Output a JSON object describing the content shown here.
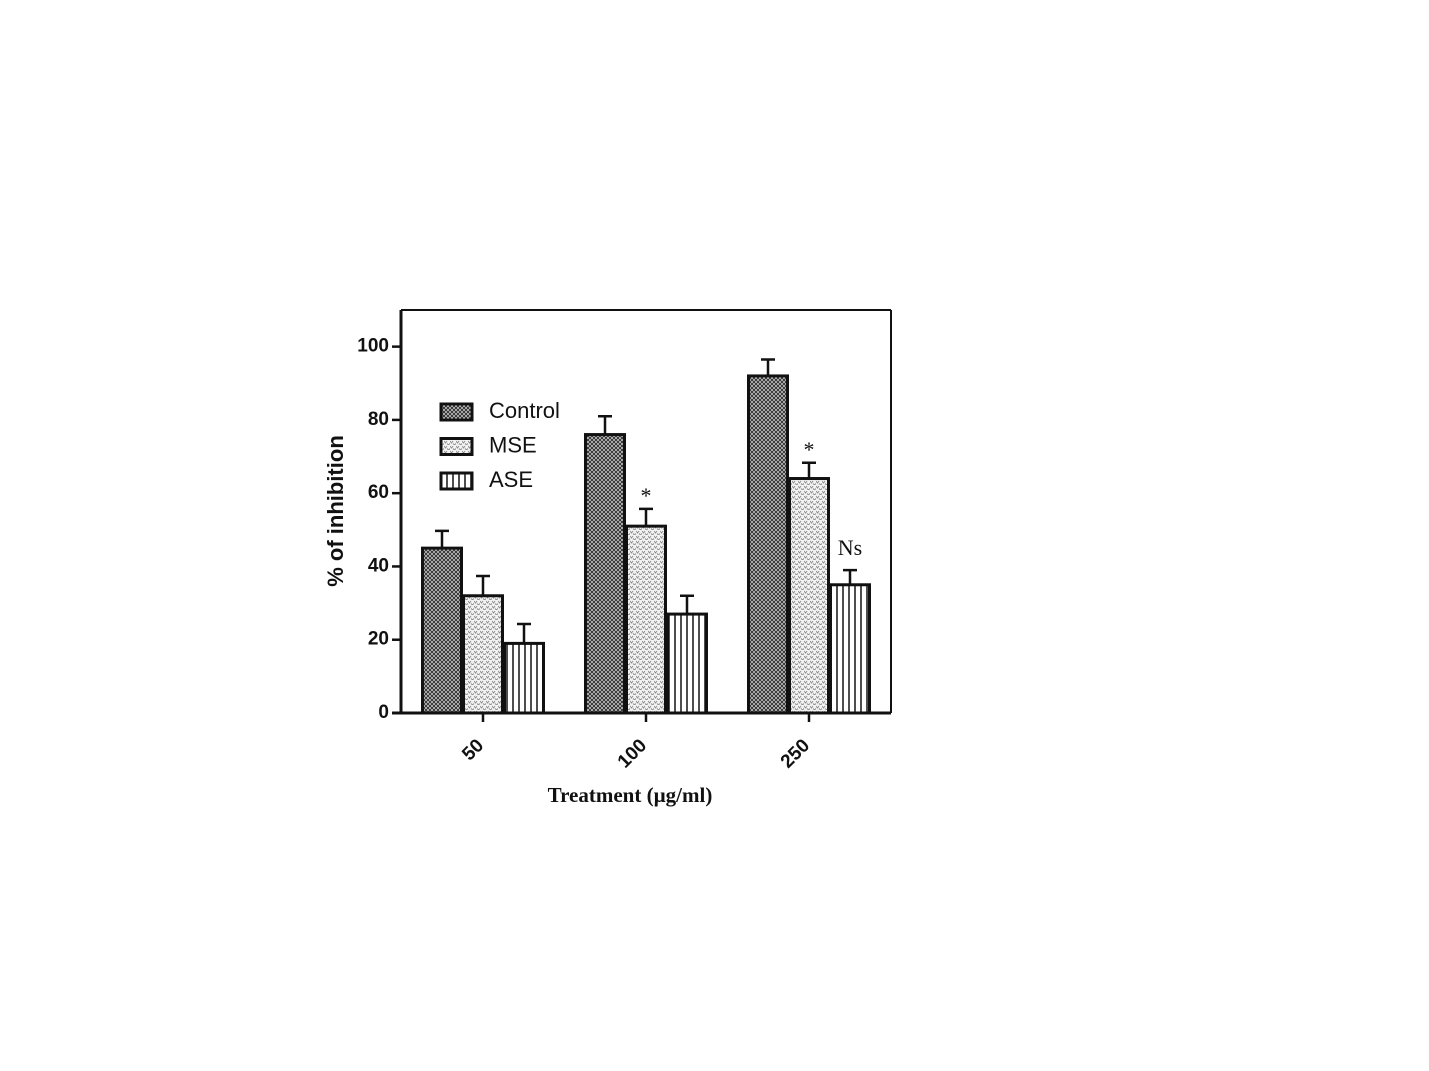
{
  "chart_data": {
    "type": "bar",
    "x_label": "Treatment (µg/ml)",
    "y_label": "% of inhibition",
    "categories": [
      "50",
      "100",
      "250"
    ],
    "series": [
      {
        "name": "Control",
        "color": "#555555",
        "pattern": "crosshatch",
        "values": [
          45,
          76,
          92
        ],
        "errors": [
          4.7,
          5,
          4.5
        ]
      },
      {
        "name": "MSE",
        "color": "#9a9a9a",
        "pattern": "dots",
        "values": [
          32,
          51,
          64
        ],
        "errors": [
          5.4,
          4.7,
          4.3
        ]
      },
      {
        "name": "ASE",
        "color": "#222222",
        "pattern": "vertical",
        "values": [
          19,
          27,
          35
        ],
        "errors": [
          5.3,
          5,
          4
        ]
      }
    ],
    "annotations": [
      {
        "text": "*",
        "series": "MSE",
        "category": "100"
      },
      {
        "text": "*",
        "series": "MSE",
        "category": "250"
      },
      {
        "text": "Ns",
        "series": "ASE",
        "category": "250"
      }
    ],
    "ylim": [
      0,
      110
    ],
    "yticks": [
      0,
      20,
      40,
      60,
      80,
      100
    ],
    "legend": "upper left"
  }
}
